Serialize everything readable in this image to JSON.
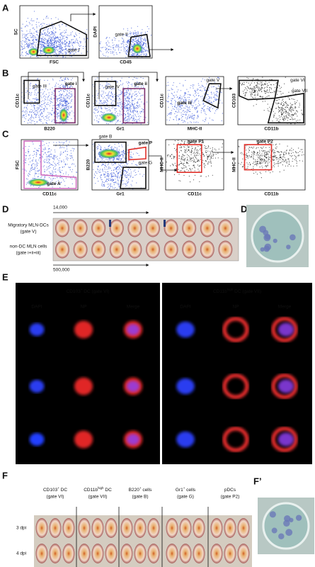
{
  "panels": {
    "A": "A",
    "B": "B",
    "C": "C",
    "D": "D",
    "D_prime": "D’",
    "E": "E",
    "F": "F",
    "F_prime": "F’"
  },
  "panel_a": {
    "plots": [
      {
        "y_axis": "SC",
        "x_axis": "FSC",
        "gates": [
          "gate I"
        ]
      },
      {
        "y_axis": "DAPI",
        "x_axis": "CD45",
        "gates": [
          "gate II"
        ]
      }
    ]
  },
  "panel_b": {
    "plots": [
      {
        "y_axis": "CD11c",
        "x_axis": "B220",
        "gates": [
          "gate III",
          "gate i"
        ]
      },
      {
        "y_axis": "CD11c",
        "x_axis": "Gr1",
        "gates": [
          "gate IV",
          "gate ii"
        ]
      },
      {
        "y_axis": "CD11c",
        "x_axis": "MHC-II",
        "gates": [
          "gate iii",
          "gate V"
        ]
      },
      {
        "y_axis": "CD103",
        "x_axis": "CD11b",
        "gates": [
          "gate VI",
          "gate VII"
        ]
      }
    ]
  },
  "panel_c": {
    "plots": [
      {
        "y_axis": "FSC",
        "x_axis": "CD11c",
        "gates": [
          "gate A"
        ]
      },
      {
        "y_axis": "B220",
        "x_axis": "Gr1",
        "gates": [
          "gate B",
          "gate P",
          "gate G"
        ]
      },
      {
        "y_axis": "MHC-II",
        "x_axis": "CD11c",
        "gates": [
          "gate P1"
        ]
      },
      {
        "y_axis": "MHC-II",
        "x_axis": "CD11b",
        "gates": [
          "gate P2"
        ]
      }
    ]
  },
  "panel_d": {
    "top_dilution": "14,000",
    "bottom_dilution": "500,000",
    "rows": [
      [
        "Migratory MLN-DCs",
        "(gate V)"
      ],
      [
        "non-DC MLN cells",
        "(gate i+ii+iii)"
      ]
    ]
  },
  "panel_e": {
    "groups": [
      {
        "title": {
          "main": "CD103",
          "sup": "+",
          "rest": " DC (gate VI)"
        },
        "channels": [
          "DAPI",
          "NP",
          "Merge"
        ]
      },
      {
        "title": {
          "main": "CD11b",
          "sup": "high",
          "rest": " DC (gate VII)"
        },
        "channels": [
          "DAPI",
          "NP",
          "Merge"
        ]
      }
    ]
  },
  "panel_f": {
    "columns": [
      {
        "main": "CD103",
        "sup": "+",
        "rest": " DC",
        "gate": "(gate VI)"
      },
      {
        "main": "CD11b",
        "sup": "high",
        "rest": " DC",
        "gate": "(gate VII)"
      },
      {
        "main": "B220",
        "sup": "+",
        "rest": " cells",
        "gate": "(gate B)"
      },
      {
        "main": "Gr1",
        "sup": "+",
        "rest": " cells",
        "gate": "(gate G)"
      },
      {
        "main": "pDCs",
        "gate": "(gate P2)"
      }
    ],
    "rows": [
      "3 dpi",
      "4 dpi"
    ]
  }
}
